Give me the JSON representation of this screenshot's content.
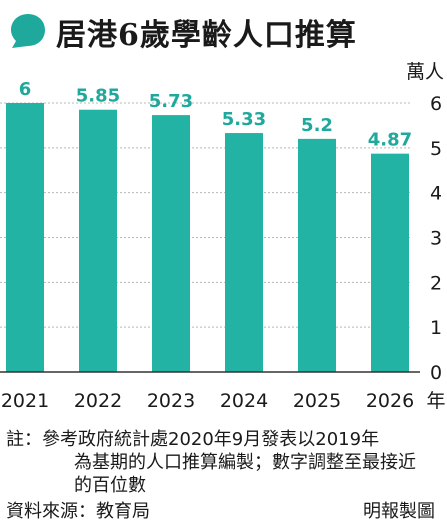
{
  "title": "居港6歲學齡人口推算",
  "colors": {
    "bar": "#22b3a5",
    "accent": "#1fa99c",
    "grid": "#b8b8b8",
    "axis": "#333333",
    "text": "#1a1a1a"
  },
  "chart_data": {
    "type": "bar",
    "title": "居港6歲學齡人口推算",
    "categories": [
      "2021",
      "2022",
      "2023",
      "2024",
      "2025",
      "2026"
    ],
    "values": [
      6,
      5.85,
      5.73,
      5.33,
      5.2,
      4.87
    ],
    "value_labels": [
      "6",
      "5.85",
      "5.73",
      "5.33",
      "5.2",
      "4.87"
    ],
    "xlabel": "年",
    "ylabel": "萬人",
    "yticks": [
      "0",
      "1",
      "2",
      "3",
      "4",
      "5",
      "6"
    ],
    "ylim": [
      0,
      6
    ],
    "grid": true,
    "legend": "none",
    "axis_side": "right"
  },
  "note": {
    "lines": [
      "註：參考政府統計處2020年9月發表以2019年",
      "為基期的人口推算編製；數字調整至最接近",
      "的百位數"
    ]
  },
  "source": "資料來源：教育局",
  "credit": "明報製圖"
}
